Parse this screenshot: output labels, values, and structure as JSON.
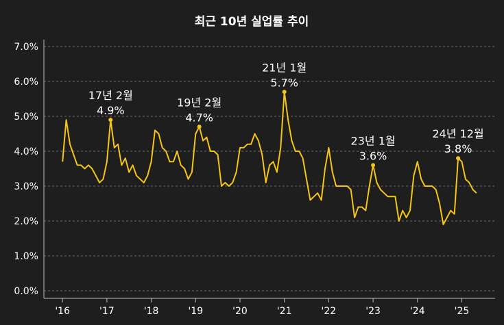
{
  "chart_data": {
    "type": "line",
    "title": "최근 10년 실업률 추이",
    "xlabel": "",
    "ylabel": "",
    "ylim": [
      0,
      7
    ],
    "y_ticks": [
      "0.0%",
      "1.0%",
      "2.0%",
      "3.0%",
      "4.0%",
      "5.0%",
      "6.0%",
      "7.0%"
    ],
    "x_ticks": [
      {
        "label": "'16",
        "x": 2016.0
      },
      {
        "label": "'17",
        "x": 2017.0
      },
      {
        "label": "'18",
        "x": 2018.0
      },
      {
        "label": "'19",
        "x": 2019.0
      },
      {
        "label": "'20",
        "x": 2020.0
      },
      {
        "label": "'21",
        "x": 2021.0
      },
      {
        "label": "'22",
        "x": 2022.0
      },
      {
        "label": "'23",
        "x": 2023.0
      },
      {
        "label": "'24",
        "x": 2024.0
      },
      {
        "label": "'25",
        "x": 2025.0
      }
    ],
    "grid": true,
    "line_color": "#f5c518",
    "series": [
      {
        "start": "2016-01",
        "frequency": "monthly",
        "values": [
          3.7,
          4.9,
          4.2,
          3.9,
          3.6,
          3.6,
          3.5,
          3.6,
          3.5,
          3.3,
          3.1,
          3.2,
          3.7,
          4.9,
          4.1,
          4.2,
          3.6,
          3.8,
          3.4,
          3.6,
          3.3,
          3.2,
          3.1,
          3.3,
          3.7,
          4.6,
          4.5,
          4.1,
          4.0,
          3.7,
          3.7,
          4.0,
          3.6,
          3.5,
          3.2,
          3.4,
          4.5,
          4.7,
          4.3,
          4.4,
          4.0,
          4.0,
          3.9,
          3.0,
          3.1,
          3.0,
          3.1,
          3.4,
          4.1,
          4.1,
          4.2,
          4.2,
          4.5,
          4.3,
          3.9,
          3.1,
          3.6,
          3.7,
          3.4,
          4.1,
          5.7,
          4.9,
          4.3,
          4.0,
          4.0,
          3.8,
          3.2,
          2.6,
          2.7,
          2.8,
          2.6,
          3.5,
          4.1,
          3.4,
          3.0,
          3.0,
          3.0,
          3.0,
          2.9,
          2.1,
          2.4,
          2.4,
          2.3,
          3.0,
          3.6,
          3.1,
          2.9,
          2.8,
          2.7,
          2.7,
          2.7,
          2.0,
          2.3,
          2.1,
          2.3,
          3.3,
          3.7,
          3.2,
          3.0,
          3.0,
          3.0,
          2.9,
          2.5,
          1.9,
          2.1,
          2.3,
          2.2,
          3.8,
          3.7,
          3.2,
          3.1,
          2.9,
          2.8
        ]
      }
    ],
    "annotations": [
      {
        "date": "2017-02",
        "value": 4.9,
        "line1": "17년 2월",
        "line2": "4.9%"
      },
      {
        "date": "2019-02",
        "value": 4.7,
        "line1": "19년 2월",
        "line2": "4.7%"
      },
      {
        "date": "2021-01",
        "value": 5.7,
        "line1": "21년 1월",
        "line2": "5.7%"
      },
      {
        "date": "2023-01",
        "value": 3.6,
        "line1": "23년 1월",
        "line2": "3.6%"
      },
      {
        "date": "2024-12",
        "value": 3.8,
        "line1": "24년 12월",
        "line2": "3.8%"
      }
    ]
  }
}
